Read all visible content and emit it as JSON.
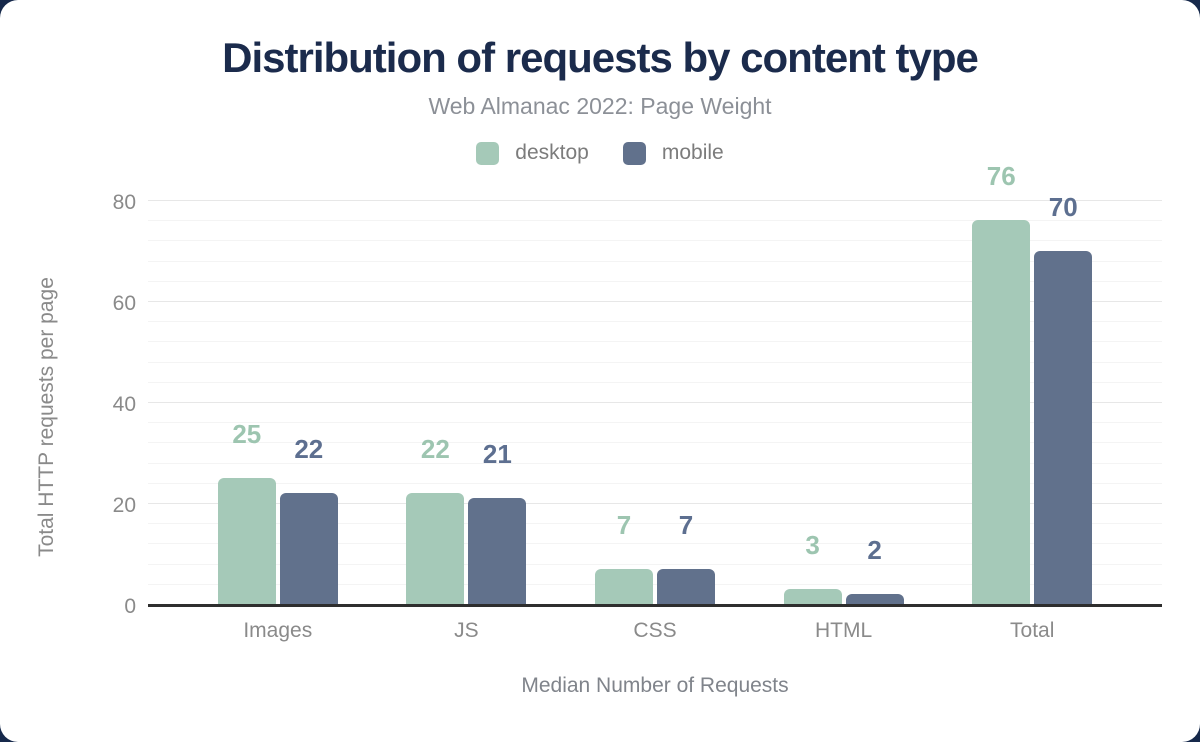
{
  "header": {
    "title": "Distribution of requests by content type",
    "subtitle": "Web Almanac 2022: Page Weight"
  },
  "chart_data": {
    "type": "bar",
    "title": "Distribution of requests by content type",
    "subtitle": "Web Almanac 2022: Page Weight",
    "categories": [
      "Images",
      "JS",
      "CSS",
      "HTML",
      "Total"
    ],
    "series": [
      {
        "name": "desktop",
        "color": "#a5c9b8",
        "label_color": "#9dc5b0",
        "values": [
          25,
          22,
          7,
          3,
          76
        ]
      },
      {
        "name": "mobile",
        "color": "#61718c",
        "label_color": "#5d6f90",
        "values": [
          22,
          21,
          7,
          2,
          70
        ]
      }
    ],
    "xlabel": "Median Number of Requests",
    "ylabel": "Total HTTP requests per page",
    "ylim": [
      0,
      80
    ],
    "yticks": [
      0,
      20,
      40,
      60,
      80
    ],
    "minor_tick_step": 4,
    "grid": true,
    "legend_position": "top",
    "value_labels_shown": true
  },
  "colors": {
    "page_background": "#16294b",
    "card_background": "#ffffff",
    "title_text": "#1b2b4c",
    "subtitle_text": "#8c9097",
    "axis_text": "#8a8a8a",
    "baseline": "#2e2e2e",
    "major_gridline": "#e7e7e7",
    "minor_gridline": "#f4f4f4"
  }
}
